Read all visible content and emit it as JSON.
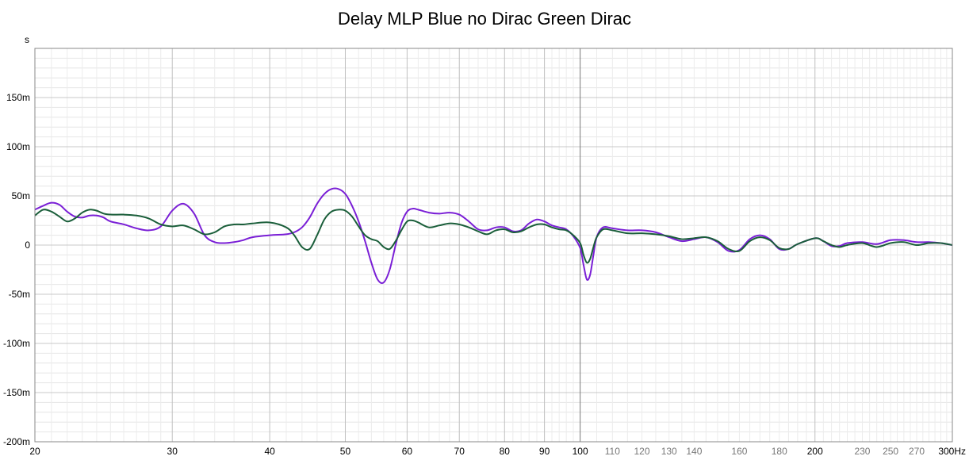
{
  "chart_data": {
    "type": "line",
    "title": "Delay MLP Blue no Dirac Green Dirac",
    "y_unit": "s",
    "x_unit": "Hz",
    "x_scale": "log",
    "xlim": [
      20,
      300
    ],
    "ylim": [
      -0.2,
      0.2
    ],
    "grid": true,
    "legend": "none",
    "y_ticks": [
      {
        "value": 0.15,
        "label": "150m"
      },
      {
        "value": 0.1,
        "label": "100m"
      },
      {
        "value": 0.05,
        "label": "50m"
      },
      {
        "value": 0.0,
        "label": "0"
      },
      {
        "value": -0.05,
        "label": "-50m"
      },
      {
        "value": -0.1,
        "label": "-100m"
      },
      {
        "value": -0.15,
        "label": "-150m"
      },
      {
        "value": -0.2,
        "label": "-200m"
      }
    ],
    "x_ticks_major": [
      {
        "value": 20,
        "label": "20"
      },
      {
        "value": 30,
        "label": "30"
      },
      {
        "value": 40,
        "label": "40"
      },
      {
        "value": 50,
        "label": "50"
      },
      {
        "value": 60,
        "label": "60"
      },
      {
        "value": 70,
        "label": "70"
      },
      {
        "value": 80,
        "label": "80"
      },
      {
        "value": 90,
        "label": "90"
      },
      {
        "value": 100,
        "label": "100"
      },
      {
        "value": 200,
        "label": "200"
      }
    ],
    "x_ticks_minor": [
      {
        "value": 110,
        "label": "110"
      },
      {
        "value": 120,
        "label": "120"
      },
      {
        "value": 130,
        "label": "130"
      },
      {
        "value": 140,
        "label": "140"
      },
      {
        "value": 160,
        "label": "160"
      },
      {
        "value": 180,
        "label": "180"
      },
      {
        "value": 230,
        "label": "230"
      },
      {
        "value": 250,
        "label": "250"
      },
      {
        "value": 270,
        "label": "270"
      }
    ],
    "x_end_label": "300Hz",
    "series": [
      {
        "color": "#7a1fd6",
        "points": [
          [
            20,
            0.036
          ],
          [
            20.5,
            0.04
          ],
          [
            21,
            0.043
          ],
          [
            21.5,
            0.041
          ],
          [
            22,
            0.034
          ],
          [
            22.5,
            0.029
          ],
          [
            23,
            0.028
          ],
          [
            23.5,
            0.03
          ],
          [
            24,
            0.03
          ],
          [
            24.5,
            0.028
          ],
          [
            25,
            0.024
          ],
          [
            26,
            0.021
          ],
          [
            27,
            0.017
          ],
          [
            28,
            0.015
          ],
          [
            29,
            0.019
          ],
          [
            30,
            0.035
          ],
          [
            31,
            0.042
          ],
          [
            32,
            0.032
          ],
          [
            33,
            0.01
          ],
          [
            34,
            0.003
          ],
          [
            35,
            0.002
          ],
          [
            36,
            0.003
          ],
          [
            37,
            0.005
          ],
          [
            38,
            0.008
          ],
          [
            40,
            0.01
          ],
          [
            42,
            0.011
          ],
          [
            43,
            0.013
          ],
          [
            44,
            0.018
          ],
          [
            45,
            0.028
          ],
          [
            46,
            0.042
          ],
          [
            47,
            0.052
          ],
          [
            48,
            0.057
          ],
          [
            49,
            0.057
          ],
          [
            50,
            0.052
          ],
          [
            51,
            0.04
          ],
          [
            52,
            0.024
          ],
          [
            53,
            0.004
          ],
          [
            54,
            -0.018
          ],
          [
            55,
            -0.035
          ],
          [
            56,
            -0.038
          ],
          [
            57,
            -0.025
          ],
          [
            58,
            0.0
          ],
          [
            59,
            0.022
          ],
          [
            60,
            0.034
          ],
          [
            61,
            0.037
          ],
          [
            62,
            0.036
          ],
          [
            64,
            0.033
          ],
          [
            66,
            0.032
          ],
          [
            68,
            0.033
          ],
          [
            70,
            0.031
          ],
          [
            72,
            0.024
          ],
          [
            74,
            0.016
          ],
          [
            76,
            0.015
          ],
          [
            78,
            0.018
          ],
          [
            80,
            0.018
          ],
          [
            82,
            0.014
          ],
          [
            84,
            0.015
          ],
          [
            86,
            0.022
          ],
          [
            88,
            0.026
          ],
          [
            90,
            0.024
          ],
          [
            92,
            0.02
          ],
          [
            94,
            0.018
          ],
          [
            96,
            0.016
          ],
          [
            98,
            0.009
          ],
          [
            100,
            -0.003
          ],
          [
            101,
            -0.02
          ],
          [
            102,
            -0.035
          ],
          [
            103,
            -0.03
          ],
          [
            104,
            -0.01
          ],
          [
            105,
            0.008
          ],
          [
            107,
            0.018
          ],
          [
            110,
            0.017
          ],
          [
            115,
            0.015
          ],
          [
            120,
            0.015
          ],
          [
            125,
            0.013
          ],
          [
            130,
            0.008
          ],
          [
            135,
            0.004
          ],
          [
            140,
            0.006
          ],
          [
            145,
            0.008
          ],
          [
            150,
            0.003
          ],
          [
            155,
            -0.006
          ],
          [
            160,
            -0.005
          ],
          [
            165,
            0.006
          ],
          [
            170,
            0.01
          ],
          [
            175,
            0.006
          ],
          [
            180,
            -0.004
          ],
          [
            185,
            -0.004
          ],
          [
            190,
            0.001
          ],
          [
            200,
            0.007
          ],
          [
            205,
            0.004
          ],
          [
            210,
            -0.001
          ],
          [
            215,
            -0.001
          ],
          [
            220,
            0.002
          ],
          [
            230,
            0.003
          ],
          [
            240,
            0.001
          ],
          [
            250,
            0.005
          ],
          [
            260,
            0.005
          ],
          [
            270,
            0.003
          ],
          [
            280,
            0.003
          ],
          [
            290,
            0.002
          ],
          [
            300,
            0.0
          ]
        ]
      },
      {
        "color": "#1a5e3a",
        "points": [
          [
            20,
            0.03
          ],
          [
            20.5,
            0.036
          ],
          [
            21,
            0.034
          ],
          [
            21.5,
            0.029
          ],
          [
            22,
            0.024
          ],
          [
            22.5,
            0.027
          ],
          [
            23,
            0.033
          ],
          [
            23.5,
            0.036
          ],
          [
            24,
            0.035
          ],
          [
            24.5,
            0.032
          ],
          [
            25,
            0.031
          ],
          [
            26,
            0.031
          ],
          [
            27,
            0.03
          ],
          [
            28,
            0.027
          ],
          [
            29,
            0.021
          ],
          [
            30,
            0.019
          ],
          [
            31,
            0.02
          ],
          [
            32,
            0.016
          ],
          [
            33,
            0.011
          ],
          [
            34,
            0.013
          ],
          [
            35,
            0.019
          ],
          [
            36,
            0.021
          ],
          [
            37,
            0.021
          ],
          [
            38,
            0.022
          ],
          [
            40,
            0.023
          ],
          [
            42,
            0.018
          ],
          [
            43,
            0.01
          ],
          [
            44,
            -0.002
          ],
          [
            45,
            -0.004
          ],
          [
            46,
            0.01
          ],
          [
            47,
            0.026
          ],
          [
            48,
            0.034
          ],
          [
            49,
            0.036
          ],
          [
            50,
            0.035
          ],
          [
            51,
            0.029
          ],
          [
            52,
            0.019
          ],
          [
            53,
            0.01
          ],
          [
            54,
            0.006
          ],
          [
            55,
            0.004
          ],
          [
            56,
            -0.002
          ],
          [
            57,
            -0.004
          ],
          [
            58,
            0.004
          ],
          [
            59,
            0.015
          ],
          [
            60,
            0.024
          ],
          [
            61,
            0.025
          ],
          [
            62,
            0.023
          ],
          [
            64,
            0.018
          ],
          [
            66,
            0.02
          ],
          [
            68,
            0.022
          ],
          [
            70,
            0.021
          ],
          [
            72,
            0.018
          ],
          [
            74,
            0.014
          ],
          [
            76,
            0.011
          ],
          [
            78,
            0.015
          ],
          [
            80,
            0.016
          ],
          [
            82,
            0.013
          ],
          [
            84,
            0.014
          ],
          [
            86,
            0.018
          ],
          [
            88,
            0.021
          ],
          [
            90,
            0.021
          ],
          [
            92,
            0.018
          ],
          [
            94,
            0.016
          ],
          [
            96,
            0.015
          ],
          [
            98,
            0.01
          ],
          [
            100,
            0.002
          ],
          [
            101,
            -0.01
          ],
          [
            102,
            -0.018
          ],
          [
            103,
            -0.014
          ],
          [
            104,
            -0.002
          ],
          [
            105,
            0.008
          ],
          [
            107,
            0.016
          ],
          [
            110,
            0.015
          ],
          [
            115,
            0.012
          ],
          [
            120,
            0.012
          ],
          [
            125,
            0.011
          ],
          [
            130,
            0.009
          ],
          [
            135,
            0.006
          ],
          [
            140,
            0.007
          ],
          [
            145,
            0.008
          ],
          [
            150,
            0.004
          ],
          [
            155,
            -0.004
          ],
          [
            160,
            -0.006
          ],
          [
            165,
            0.004
          ],
          [
            170,
            0.008
          ],
          [
            175,
            0.005
          ],
          [
            180,
            -0.003
          ],
          [
            185,
            -0.004
          ],
          [
            190,
            0.001
          ],
          [
            200,
            0.007
          ],
          [
            205,
            0.004
          ],
          [
            210,
            0.0
          ],
          [
            215,
            -0.002
          ],
          [
            220,
            0.0
          ],
          [
            230,
            0.002
          ],
          [
            240,
            -0.002
          ],
          [
            250,
            0.002
          ],
          [
            260,
            0.003
          ],
          [
            270,
            0.0
          ],
          [
            280,
            0.002
          ],
          [
            290,
            0.002
          ],
          [
            300,
            0.0
          ]
        ]
      }
    ]
  }
}
